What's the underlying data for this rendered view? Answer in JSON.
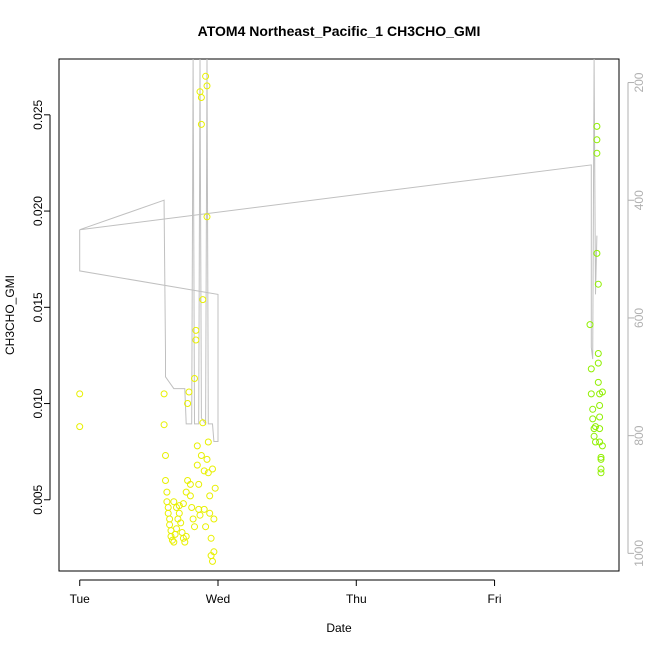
{
  "chart_data": {
    "type": "scatter",
    "title": "ATOM4 Northeast_Pacific_1 CH3CHO_GMI",
    "xlabel": "Date",
    "ylabel": "CH3CHO_GMI",
    "x_ticks": [
      "Tue",
      "Wed",
      "Thu",
      "Fri"
    ],
    "y_ticks": [
      "0.005",
      "0.010",
      "0.015",
      "0.020",
      "0.025"
    ],
    "y2_ticks": [
      "200",
      "400",
      "600",
      "800",
      "1000"
    ],
    "xlim": [
      -0.15,
      3.9
    ],
    "ylim": [
      0.0013,
      0.0279
    ],
    "y2lim": [
      1030,
      160
    ],
    "colors": {
      "line": "#c0c0c0",
      "scatter_low": "#e8f000",
      "scatter_high": "#90f000"
    },
    "pressure_line": [
      [
        0.0,
        450
      ],
      [
        0.0,
        520
      ],
      [
        1.0,
        560
      ],
      [
        1.0,
        810
      ],
      [
        0.97,
        810
      ],
      [
        0.96,
        780
      ],
      [
        0.93,
        780
      ],
      [
        0.92,
        160
      ],
      [
        0.91,
        780
      ],
      [
        0.88,
        770
      ],
      [
        0.87,
        160
      ],
      [
        0.86,
        780
      ],
      [
        0.83,
        780
      ],
      [
        0.82,
        160
      ],
      [
        0.81,
        780
      ],
      [
        0.77,
        780
      ],
      [
        0.76,
        720
      ],
      [
        0.7,
        720
      ],
      [
        0.68,
        720
      ],
      [
        0.62,
        700
      ],
      [
        0.62,
        660
      ],
      [
        0.61,
        410
      ],
      [
        0.61,
        400
      ],
      [
        0.0,
        450
      ],
      [
        3.7,
        340
      ],
      [
        3.7,
        650
      ],
      [
        3.71,
        670
      ],
      [
        3.72,
        160
      ],
      [
        3.73,
        560
      ],
      [
        3.74,
        460
      ]
    ],
    "points": [
      [
        0.0,
        0.0105
      ],
      [
        0.0,
        0.0088
      ],
      [
        0.61,
        0.0105
      ],
      [
        0.61,
        0.0089
      ],
      [
        0.62,
        0.0073
      ],
      [
        0.62,
        0.006
      ],
      [
        0.63,
        0.0054
      ],
      [
        0.63,
        0.0049
      ],
      [
        0.64,
        0.0046
      ],
      [
        0.64,
        0.0043
      ],
      [
        0.65,
        0.004
      ],
      [
        0.65,
        0.0037
      ],
      [
        0.66,
        0.0034
      ],
      [
        0.66,
        0.0031
      ],
      [
        0.67,
        0.0029
      ],
      [
        0.68,
        0.0028
      ],
      [
        0.69,
        0.0032
      ],
      [
        0.7,
        0.0035
      ],
      [
        0.71,
        0.004
      ],
      [
        0.72,
        0.0047
      ],
      [
        0.72,
        0.0043
      ],
      [
        0.73,
        0.0038
      ],
      [
        0.74,
        0.0033
      ],
      [
        0.75,
        0.003
      ],
      [
        0.76,
        0.0028
      ],
      [
        0.77,
        0.0031
      ],
      [
        0.77,
        0.0054
      ],
      [
        0.78,
        0.006
      ],
      [
        0.78,
        0.01
      ],
      [
        0.79,
        0.0106
      ],
      [
        0.8,
        0.0058
      ],
      [
        0.81,
        0.0046
      ],
      [
        0.82,
        0.004
      ],
      [
        0.83,
        0.0036
      ],
      [
        0.83,
        0.0113
      ],
      [
        0.84,
        0.0133
      ],
      [
        0.84,
        0.0138
      ],
      [
        0.85,
        0.0078
      ],
      [
        0.86,
        0.0058
      ],
      [
        0.86,
        0.0045
      ],
      [
        0.87,
        0.0042
      ],
      [
        0.87,
        0.0262
      ],
      [
        0.88,
        0.0259
      ],
      [
        0.88,
        0.0245
      ],
      [
        0.89,
        0.0154
      ],
      [
        0.89,
        0.009
      ],
      [
        0.9,
        0.0065
      ],
      [
        0.9,
        0.0045
      ],
      [
        0.91,
        0.0036
      ],
      [
        0.91,
        0.027
      ],
      [
        0.92,
        0.0265
      ],
      [
        0.92,
        0.0197
      ],
      [
        0.93,
        0.008
      ],
      [
        0.93,
        0.0064
      ],
      [
        0.94,
        0.0052
      ],
      [
        0.94,
        0.0043
      ],
      [
        0.95,
        0.003
      ],
      [
        0.95,
        0.0021
      ],
      [
        0.96,
        0.0018
      ],
      [
        0.97,
        0.0023
      ],
      [
        0.97,
        0.004
      ],
      [
        0.98,
        0.0056
      ],
      [
        0.68,
        0.0049
      ],
      [
        0.7,
        0.0046
      ],
      [
        0.75,
        0.0048
      ],
      [
        0.8,
        0.0052
      ],
      [
        0.85,
        0.0068
      ],
      [
        0.88,
        0.0073
      ],
      [
        0.92,
        0.0071
      ],
      [
        0.96,
        0.0066
      ],
      [
        3.69,
        0.0141
      ],
      [
        3.7,
        0.0118
      ],
      [
        3.7,
        0.0105
      ],
      [
        3.71,
        0.0097
      ],
      [
        3.71,
        0.0092
      ],
      [
        3.72,
        0.0087
      ],
      [
        3.72,
        0.0083
      ],
      [
        3.73,
        0.008
      ],
      [
        3.73,
        0.0088
      ],
      [
        3.74,
        0.0244
      ],
      [
        3.74,
        0.0237
      ],
      [
        3.74,
        0.023
      ],
      [
        3.74,
        0.0178
      ],
      [
        3.75,
        0.0162
      ],
      [
        3.75,
        0.0126
      ],
      [
        3.75,
        0.0121
      ],
      [
        3.75,
        0.0111
      ],
      [
        3.76,
        0.0105
      ],
      [
        3.76,
        0.0099
      ],
      [
        3.76,
        0.0093
      ],
      [
        3.76,
        0.0087
      ],
      [
        3.76,
        0.008
      ],
      [
        3.77,
        0.0072
      ],
      [
        3.77,
        0.0066
      ],
      [
        3.77,
        0.0064
      ],
      [
        3.77,
        0.0071
      ],
      [
        3.78,
        0.0078
      ],
      [
        3.78,
        0.0106
      ]
    ]
  }
}
